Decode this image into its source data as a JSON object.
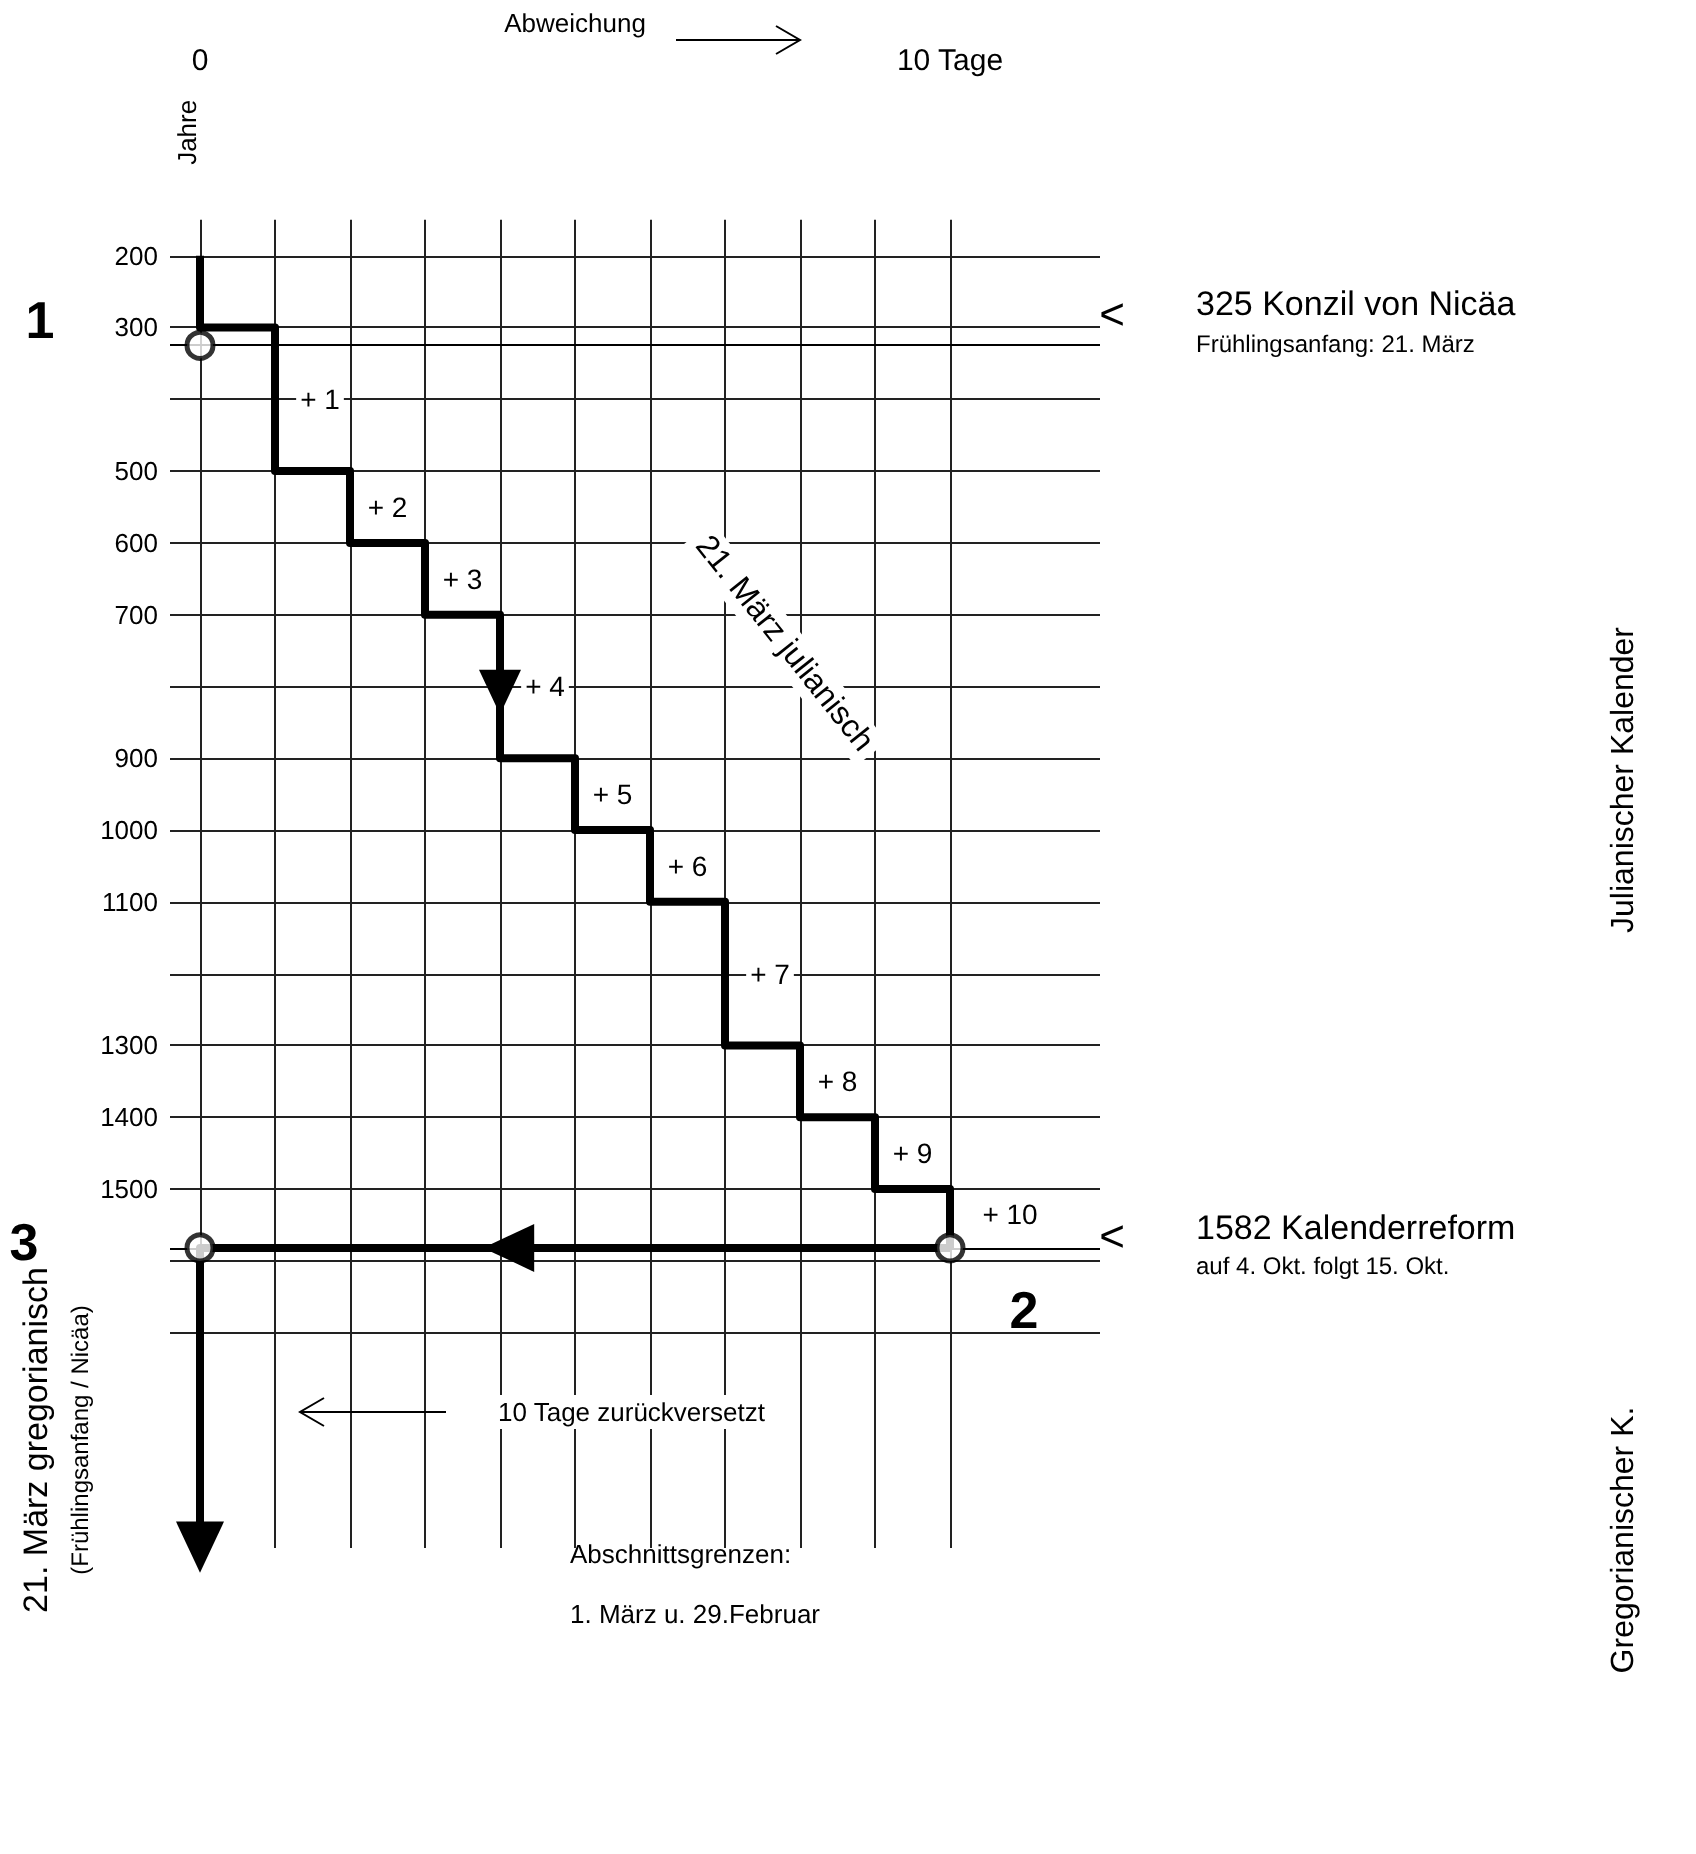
{
  "chart_data": {
    "type": "line",
    "xlabel": "Abweichung",
    "ylabel": "Jahre",
    "xlim": [
      -0.4,
      12
    ],
    "ylim": [
      2000,
      150
    ],
    "xticks": [
      0,
      {
        "value": 1,
        "label": null
      },
      {
        "value": 2,
        "label": null
      },
      {
        "value": 3,
        "label": null
      },
      {
        "value": 4,
        "label": null
      },
      {
        "value": 5,
        "label": null
      },
      {
        "value": 6,
        "label": null
      },
      {
        "value": 7,
        "label": null
      },
      {
        "value": 8,
        "label": null
      },
      {
        "value": 9,
        "label": null
      },
      {
        "value": 10,
        "label": "10 Tage"
      }
    ],
    "yticks": [
      200,
      300,
      {
        "value": 400,
        "label": null
      },
      500,
      600,
      700,
      {
        "value": 800,
        "label": null
      },
      900,
      1000,
      1100,
      {
        "value": 1200,
        "label": null
      },
      1300,
      1400,
      1500,
      {
        "value": 1600,
        "label": null
      },
      {
        "value": 1700,
        "label": null
      }
    ],
    "grid": true,
    "series": [
      {
        "color": "#000000",
        "x": [
          0,
          0,
          1,
          1,
          2,
          2,
          3,
          3,
          4,
          4,
          5,
          5,
          6,
          6,
          7,
          7,
          8,
          8,
          9,
          9,
          10,
          10
        ],
        "values": [
          200,
          300,
          300,
          500,
          500,
          600,
          600,
          700,
          700,
          900,
          900,
          1000,
          1000,
          1100,
          1100,
          1300,
          1300,
          1400,
          1400,
          1500,
          1500,
          1582
        ]
      },
      {
        "color": "#000000",
        "x": [
          10,
          0,
          0
        ],
        "values": [
          1582,
          1582,
          1990
        ]
      },
      {
        "type": "scatter",
        "color": "#000000",
        "marker": "circle",
        "x": [
          0,
          10,
          0
        ],
        "values": [
          325,
          1582,
          1582
        ]
      }
    ],
    "ref_lines": [
      {
        "axis": "y",
        "value": 325
      },
      {
        "axis": "y",
        "value": 1582
      }
    ],
    "annotations": [
      "1",
      "3",
      "2",
      "<",
      "325 Konzil von Nicäa",
      "Frühlingsanfang: 21. März",
      "Julianischer Kalender",
      "<",
      "1582 Kalenderreform",
      "auf 4. Okt. folgt 15. Okt.",
      "10 Tage zurückversetzt",
      "Gregorianischer K.",
      "Abschnittsgrenzen:",
      "1. März u. 29.Februar",
      "21. März gregorianisch",
      "(Frühlingsanfang / Nicäa)",
      "21. März julianisch",
      {
        "text": "+ 1",
        "x": 1.6,
        "y": 400
      },
      {
        "text": "+ 2",
        "x": 2.5,
        "y": 550
      },
      {
        "text": "+ 3",
        "x": 3.5,
        "y": 650
      },
      {
        "text": "+ 4",
        "x": 4.6,
        "y": 800
      },
      {
        "text": "+ 5",
        "x": 5.5,
        "y": 950
      },
      {
        "text": "+ 6",
        "x": 6.5,
        "y": 1050
      },
      {
        "text": "+ 7",
        "x": 7.6,
        "y": 1200
      },
      {
        "text": "+ 8",
        "x": 8.5,
        "y": 1350
      },
      {
        "text": "+ 9",
        "x": 9.5,
        "y": 1450
      },
      {
        "text": "+ 10",
        "x": 10.8,
        "y": 1535
      }
    ]
  }
}
